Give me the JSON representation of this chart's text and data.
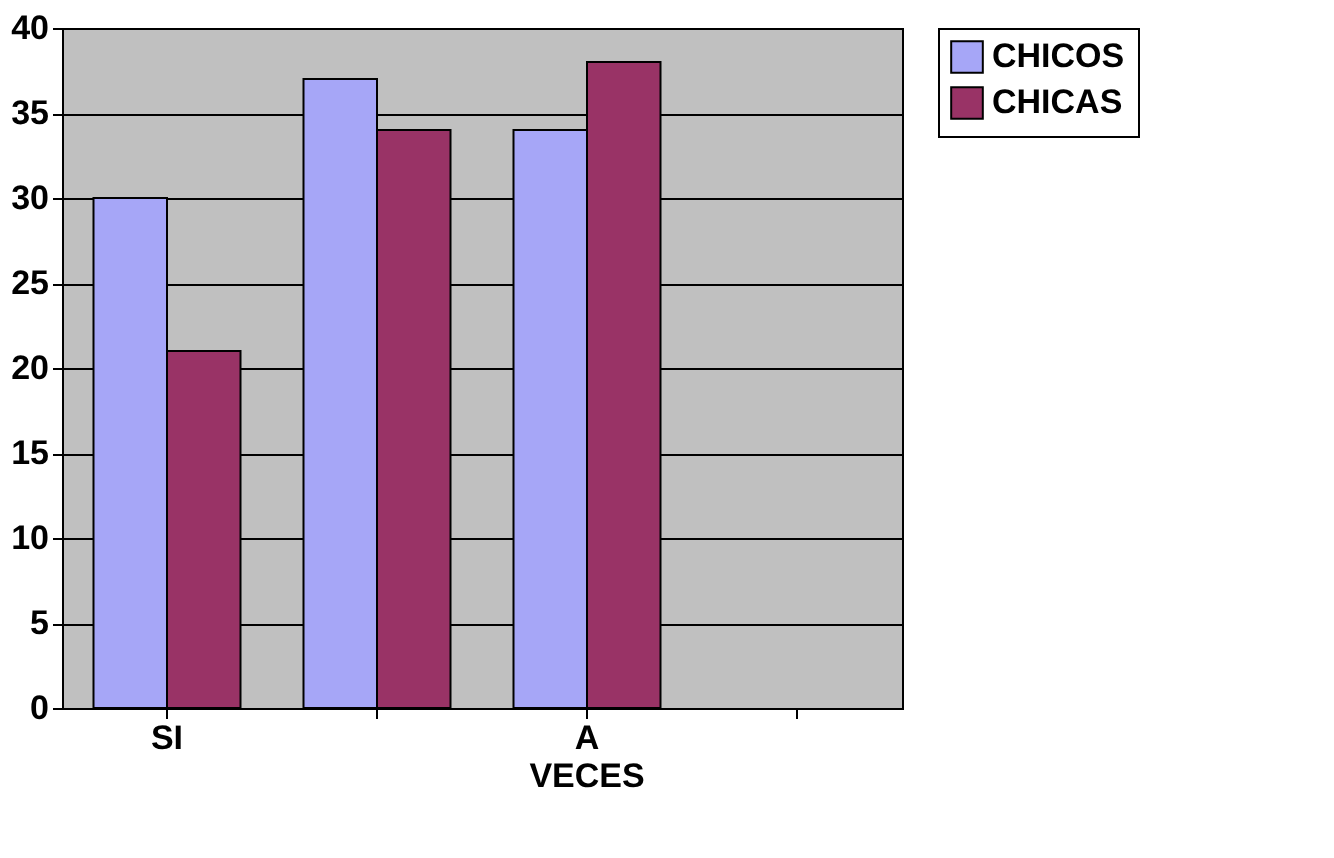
{
  "chart_data": {
    "type": "bar",
    "categories": [
      "SI",
      null,
      "A VECES",
      null
    ],
    "series": [
      {
        "name": "CHICOS",
        "color": "#a6a6f7",
        "values": [
          30,
          37,
          34,
          null
        ]
      },
      {
        "name": "CHICAS",
        "color": "#993366",
        "values": [
          21,
          34,
          38,
          null
        ]
      }
    ],
    "ylim": [
      0,
      40
    ],
    "yticks": [
      0,
      5,
      10,
      15,
      20,
      25,
      30,
      35,
      40
    ],
    "grid": "y",
    "legend": "right"
  }
}
